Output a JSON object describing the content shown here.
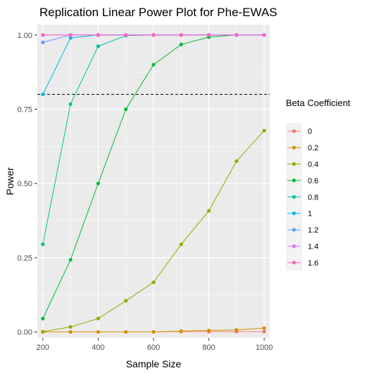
{
  "chart_data": {
    "type": "line",
    "title": "Replication Linear Power Plot for Phe-EWAS",
    "xlabel": "Sample Size",
    "ylabel": "Power",
    "xlim": [
      180,
      1020
    ],
    "ylim": [
      -0.02,
      1.035
    ],
    "x_ticks": [
      200,
      400,
      600,
      800,
      1000
    ],
    "y_ticks": [
      0,
      0.25,
      0.5,
      0.75,
      1
    ],
    "y_tick_labels": [
      "0.00",
      "0.25",
      "0.50",
      "0.75",
      "1.00"
    ],
    "grid": true,
    "reference_line": {
      "y": 0.8,
      "style": "dashed",
      "color": "#000000"
    },
    "legend": {
      "title": "Beta Coefficient",
      "position": "right"
    },
    "x": [
      200,
      300,
      400,
      500,
      600,
      700,
      800,
      900,
      1000
    ],
    "series": [
      {
        "name": "0",
        "color": "#F8766D",
        "values": [
          0,
          0,
          0,
          0,
          0,
          0.001,
          0.001,
          0.001,
          0.001
        ]
      },
      {
        "name": "0.2",
        "color": "#D39200",
        "values": [
          0,
          0,
          0,
          0,
          0,
          0.003,
          0.005,
          0.007,
          0.013
        ]
      },
      {
        "name": "0.4",
        "color": "#93AA00",
        "values": [
          0.001,
          0.017,
          0.045,
          0.105,
          0.167,
          0.295,
          0.408,
          0.575,
          0.678
        ]
      },
      {
        "name": "0.6",
        "color": "#00BA38",
        "values": [
          0.045,
          0.243,
          0.5,
          0.75,
          0.9,
          0.968,
          0.993,
          1,
          1
        ]
      },
      {
        "name": "0.8",
        "color": "#00C19F",
        "values": [
          0.295,
          0.767,
          0.962,
          0.998,
          1,
          1,
          1,
          1,
          1
        ]
      },
      {
        "name": "1",
        "color": "#00B9E3",
        "values": [
          0.8,
          0.99,
          1,
          1,
          1,
          1,
          1,
          1,
          1
        ]
      },
      {
        "name": "1.2",
        "color": "#619CFF",
        "values": [
          0.975,
          1,
          1,
          1,
          1,
          1,
          1,
          1,
          1
        ]
      },
      {
        "name": "1.4",
        "color": "#DB72FB",
        "values": [
          1,
          1,
          1,
          1,
          1,
          1,
          1,
          1,
          1
        ]
      },
      {
        "name": "1.6",
        "color": "#FF61C3",
        "values": [
          1,
          1,
          1,
          1,
          1,
          1,
          1,
          1,
          1
        ]
      }
    ]
  }
}
